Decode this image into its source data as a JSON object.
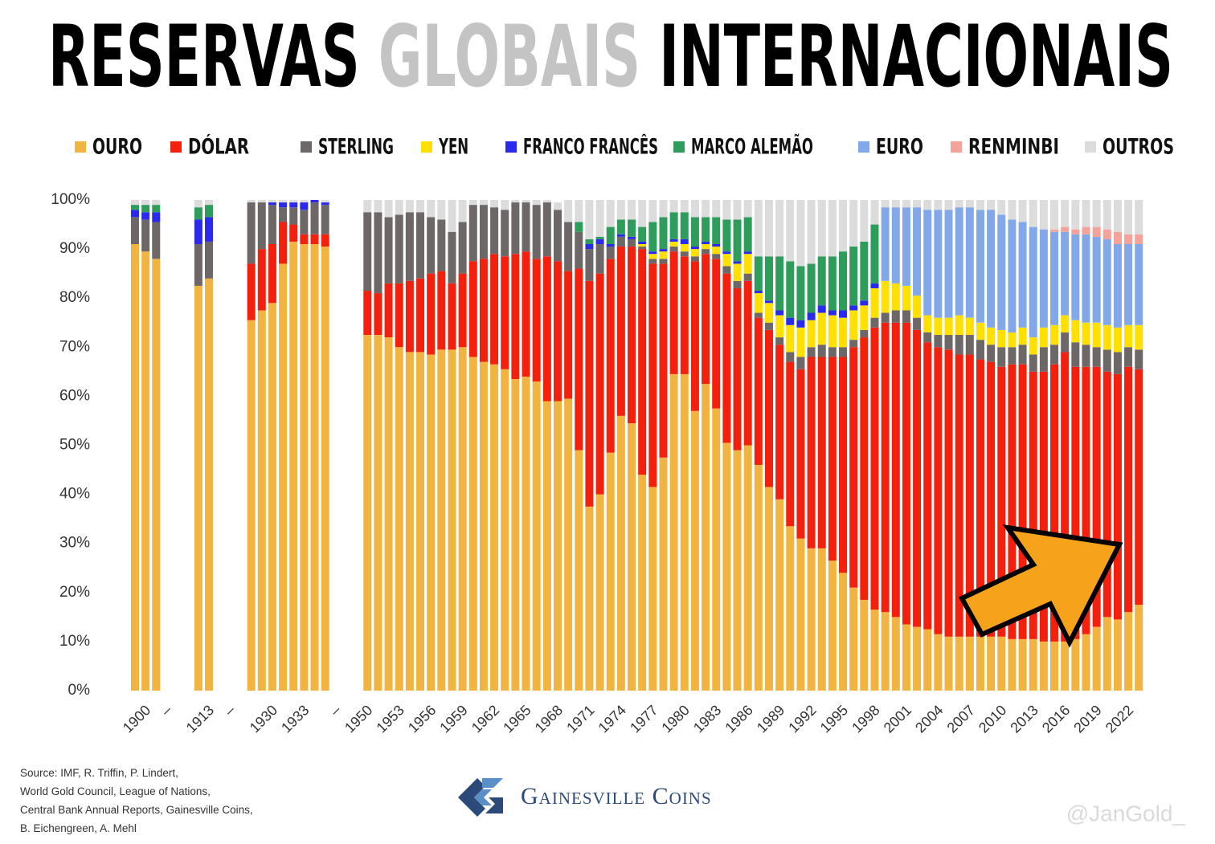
{
  "chart_data": {
    "type": "stacked_bar",
    "title_parts": [
      {
        "text": "RESERVAS",
        "color": "#000000"
      },
      {
        "text": "GLOBAIS",
        "color": "#c4c4c4"
      },
      {
        "text": "INTERNACIONAIS",
        "color": "#000000"
      }
    ],
    "categories": [
      null,
      "1900",
      null,
      "–",
      null,
      null,
      null,
      "1913",
      null,
      "–",
      null,
      null,
      null,
      "1930",
      null,
      null,
      "1933",
      null,
      null,
      "–",
      null,
      null,
      "1950",
      null,
      null,
      "1953",
      null,
      null,
      "1956",
      null,
      null,
      "1959",
      null,
      null,
      "1962",
      null,
      null,
      "1965",
      null,
      null,
      "1968",
      null,
      null,
      "1971",
      null,
      null,
      "1974",
      null,
      null,
      "1977",
      null,
      null,
      "1980",
      null,
      null,
      "1983",
      null,
      null,
      "1986",
      null,
      null,
      "1989",
      null,
      null,
      "1992",
      null,
      null,
      "1995",
      null,
      null,
      "1998",
      null,
      null,
      "2001",
      null,
      null,
      "2004",
      null,
      null,
      "2007",
      null,
      null,
      "2010",
      null,
      null,
      "2013",
      null,
      null,
      "2016",
      null,
      null,
      "2019",
      null,
      null,
      "2022",
      null
    ],
    "series": [
      {
        "name": "OURO",
        "color": "#f2b440",
        "values": [
          91,
          89.5,
          88,
          null,
          null,
          null,
          82.5,
          84,
          null,
          null,
          null,
          75.5,
          77.5,
          79,
          87,
          91.5,
          91,
          91,
          90.5,
          null,
          null,
          null,
          72.5,
          72.5,
          72,
          70,
          69,
          69,
          68.5,
          69.5,
          69.5,
          70,
          68,
          67,
          66.5,
          65.5,
          63.5,
          64,
          63,
          59,
          59,
          59.5,
          49,
          37.5,
          40,
          48.5,
          56,
          54.5,
          44,
          41.5,
          47.5,
          64.5,
          64.5,
          57,
          62.5,
          57.5,
          50.5,
          49,
          50,
          46,
          41.5,
          39,
          33.5,
          31,
          29,
          29,
          26.5,
          24,
          21,
          18.5,
          16.5,
          16,
          15,
          13.5,
          13,
          12.5,
          11.5,
          11,
          11,
          11,
          11,
          11,
          11,
          10.5,
          10.5,
          10.5,
          10,
          10,
          10,
          10.5,
          11.5,
          13,
          15,
          14.5,
          16,
          17.5
        ]
      },
      {
        "name": "DÓLAR",
        "color": "#f2200c",
        "values": [
          0,
          0,
          0,
          null,
          null,
          null,
          0,
          0,
          null,
          null,
          null,
          11.5,
          12.5,
          12,
          8.5,
          3.5,
          2,
          2,
          2.5,
          null,
          null,
          null,
          9,
          8.5,
          11,
          13,
          14.5,
          15,
          16.5,
          16,
          13.5,
          15,
          19.5,
          21,
          22.5,
          23,
          25.5,
          25.5,
          25,
          29.5,
          28.5,
          26,
          37,
          46,
          45,
          39.5,
          34.5,
          36,
          46,
          45.5,
          39.5,
          25,
          24,
          30.5,
          26.5,
          30.5,
          34.5,
          33,
          33.5,
          30,
          32,
          31.5,
          33.5,
          34.5,
          39,
          39,
          41.5,
          44,
          49,
          53.5,
          57.5,
          59,
          60,
          61.5,
          60.5,
          58.5,
          58.5,
          58.5,
          57.5,
          57.5,
          56.5,
          56,
          55,
          56,
          56,
          54.5,
          55,
          56.5,
          59,
          55.5,
          54.5,
          53,
          50,
          50,
          50,
          48
        ]
      },
      {
        "name": "STERLING",
        "color": "#6e6767",
        "values": [
          5.5,
          6.5,
          7.5,
          null,
          null,
          null,
          8.5,
          7.5,
          null,
          null,
          null,
          12.5,
          9.5,
          8,
          3,
          3.5,
          5,
          6.5,
          6,
          null,
          null,
          null,
          16,
          16.5,
          13.5,
          14,
          14,
          13.5,
          11.5,
          10.5,
          10.5,
          10.5,
          11.5,
          11,
          9.5,
          9.5,
          10.5,
          10,
          11,
          11,
          10.5,
          10,
          7.5,
          6.5,
          6,
          2.5,
          2,
          1.5,
          0.5,
          1,
          1,
          1,
          1,
          1,
          1,
          1,
          1.5,
          1.5,
          1.5,
          1,
          1.5,
          1.5,
          2,
          2.5,
          2,
          2.5,
          2,
          2,
          1.5,
          1.5,
          2,
          2,
          2.5,
          2.5,
          2.5,
          2,
          2.5,
          3,
          4,
          4,
          4,
          3.5,
          4,
          3.5,
          4,
          3.5,
          5,
          4,
          4,
          5,
          4.5,
          4,
          4.5,
          4.5,
          4,
          4
        ]
      },
      {
        "name": "YEN",
        "color": "#ffe000",
        "values": [
          0,
          0,
          0,
          null,
          null,
          null,
          0,
          0,
          null,
          null,
          null,
          0,
          0,
          0,
          0,
          0,
          0,
          0,
          0,
          null,
          null,
          null,
          0,
          0,
          0,
          0,
          0,
          0,
          0,
          0,
          0,
          0,
          0,
          0,
          0,
          0,
          0,
          0,
          0,
          0,
          0,
          0,
          0,
          0,
          0,
          0,
          0,
          0,
          0.5,
          1,
          1.5,
          1,
          1.5,
          1.5,
          1,
          1.5,
          2.5,
          3.5,
          4,
          4,
          4,
          4.5,
          5.5,
          6,
          5.5,
          6.5,
          6.5,
          6,
          6,
          5,
          6,
          6.5,
          5.5,
          5,
          4.5,
          3.5,
          3.5,
          3.5,
          4,
          3.5,
          3.5,
          3.5,
          3.5,
          3,
          3.5,
          3.5,
          4,
          4,
          3.5,
          4.5,
          4.5,
          5,
          5,
          5,
          4.5,
          5
        ]
      },
      {
        "name": "FRANCO FRANCÊS",
        "color": "#2a2aee",
        "values": [
          1.5,
          1.5,
          2,
          null,
          null,
          null,
          5,
          5,
          null,
          null,
          null,
          0,
          0,
          0.5,
          1,
          1,
          1.5,
          0.5,
          0.5,
          null,
          null,
          null,
          0,
          0,
          0,
          0,
          0,
          0,
          0,
          0,
          0,
          0,
          0,
          0,
          0,
          0,
          0,
          0,
          0,
          0,
          0,
          0,
          0,
          1,
          1,
          0.5,
          0.5,
          0.5,
          0.5,
          0.5,
          0.5,
          0.5,
          1,
          0.5,
          0.5,
          0.5,
          0.5,
          0.5,
          0.5,
          0.5,
          0.5,
          1,
          1.5,
          1.5,
          1.5,
          1.5,
          1,
          1.5,
          1,
          1,
          1,
          0,
          0,
          0,
          0,
          0,
          0,
          0,
          0,
          0,
          0,
          0,
          0,
          0,
          0,
          0,
          0,
          0,
          0,
          0,
          0,
          0,
          0,
          0,
          0,
          0
        ]
      },
      {
        "name": "MARCO ALEMÃO",
        "color": "#2e9c5a",
        "values": [
          1,
          1.5,
          1.5,
          null,
          null,
          null,
          2.5,
          2.5,
          null,
          null,
          null,
          0,
          0,
          0,
          0,
          0,
          0,
          0,
          0,
          null,
          null,
          null,
          0,
          0,
          0,
          0,
          0,
          0,
          0,
          0,
          0,
          0,
          0,
          0,
          0,
          0,
          0,
          0,
          0,
          0,
          0,
          0,
          2,
          1,
          0.5,
          3.5,
          3,
          3.5,
          3,
          6,
          6.5,
          5.5,
          5.5,
          6,
          5,
          5.5,
          6.5,
          8.5,
          7,
          7,
          9,
          11,
          11.5,
          11,
          10,
          10,
          11,
          12,
          12,
          12,
          12,
          0,
          0,
          0,
          0,
          0,
          0,
          0,
          0,
          0,
          0,
          0,
          0,
          0,
          0,
          0,
          0,
          0,
          0,
          0,
          0,
          0,
          0,
          0,
          0,
          0
        ]
      },
      {
        "name": "EURO",
        "color": "#82a8ea",
        "values": [
          0,
          0,
          0,
          null,
          null,
          null,
          0,
          0,
          null,
          null,
          null,
          0,
          0,
          0,
          0,
          0,
          0,
          0,
          0,
          null,
          null,
          null,
          0,
          0,
          0,
          0,
          0,
          0,
          0,
          0,
          0,
          0,
          0,
          0,
          0,
          0,
          0,
          0,
          0,
          0,
          0,
          0,
          0,
          0,
          0,
          0,
          0,
          0,
          0,
          0,
          0,
          0,
          0,
          0,
          0,
          0,
          0,
          0,
          0,
          0,
          0,
          0,
          0,
          0,
          0,
          0,
          0,
          0,
          0,
          0,
          0,
          15,
          15.5,
          16,
          18,
          21.5,
          22,
          22,
          22,
          22.5,
          23,
          24,
          23.5,
          23,
          21.5,
          22.5,
          20,
          19,
          17,
          17.5,
          18,
          17.5,
          17.5,
          17,
          16.5,
          16.5
        ]
      },
      {
        "name": "RENMINBI",
        "color": "#f5a29a",
        "values": [
          0,
          0,
          0,
          null,
          null,
          null,
          0,
          0,
          null,
          null,
          null,
          0,
          0,
          0,
          0,
          0,
          0,
          0,
          0,
          null,
          null,
          null,
          0,
          0,
          0,
          0,
          0,
          0,
          0,
          0,
          0,
          0,
          0,
          0,
          0,
          0,
          0,
          0,
          0,
          0,
          0,
          0,
          0,
          0,
          0,
          0,
          0,
          0,
          0,
          0,
          0,
          0,
          0,
          0,
          0,
          0,
          0,
          0,
          0,
          0,
          0,
          0,
          0,
          0,
          0,
          0,
          0,
          0,
          0,
          0,
          0,
          0,
          0,
          0,
          0,
          0,
          0,
          0,
          0,
          0,
          0,
          0,
          0,
          0,
          0,
          0,
          0,
          0.5,
          1,
          1,
          1.5,
          2,
          2,
          2.5,
          2,
          2
        ]
      },
      {
        "name": "OUTROS",
        "color": "#dcdcdc",
        "values": [
          1,
          1,
          1,
          null,
          null,
          null,
          1.5,
          1,
          null,
          null,
          null,
          0.5,
          0.5,
          0.5,
          0.5,
          0.5,
          0.5,
          0,
          0.5,
          null,
          null,
          null,
          2.5,
          2.5,
          3.5,
          3,
          2.5,
          2.5,
          3.5,
          4,
          6.5,
          4.5,
          1,
          1,
          1.5,
          2,
          0.5,
          0.5,
          1,
          0.5,
          1.5,
          4.5,
          4.5,
          8,
          7.5,
          5.5,
          4,
          4,
          5.5,
          4.5,
          3.5,
          2.5,
          2.5,
          3.5,
          3.5,
          3.5,
          4,
          4,
          3.5,
          11.5,
          11.5,
          11.5,
          12.5,
          13.5,
          13,
          11.5,
          11.5,
          10.5,
          9.5,
          8.5,
          5,
          1.5,
          1.5,
          1.5,
          1.5,
          2,
          2,
          2,
          1.5,
          1.5,
          2,
          2,
          3,
          4,
          4.5,
          5.5,
          6,
          6,
          5.5,
          6,
          5.5,
          5.5,
          6,
          6.5,
          7,
          7
        ]
      }
    ],
    "ylim": [
      0,
      100
    ],
    "yticks": [
      {
        "value": 0,
        "label": "0%"
      },
      {
        "value": 10,
        "label": "10%"
      },
      {
        "value": 20,
        "label": "20%"
      },
      {
        "value": 30,
        "label": "30%"
      },
      {
        "value": 40,
        "label": "40%"
      },
      {
        "value": 50,
        "label": "50%"
      },
      {
        "value": 60,
        "label": "60%"
      },
      {
        "value": 70,
        "label": "70%"
      },
      {
        "value": 80,
        "label": "80%"
      },
      {
        "value": 90,
        "label": "90%"
      },
      {
        "value": 100,
        "label": "100%"
      }
    ],
    "grid": false,
    "legend": "top",
    "source": [
      "Source: IMF, R. Triffin, P. Lindert,",
      "World Gold Council, League of Nations,",
      "Central Bank Annual Reports, Gainesville Coins,",
      "B. Eichengreen, A. Mehl"
    ],
    "brand": "Gainesville Coins",
    "watermark": "@JanGold_"
  }
}
